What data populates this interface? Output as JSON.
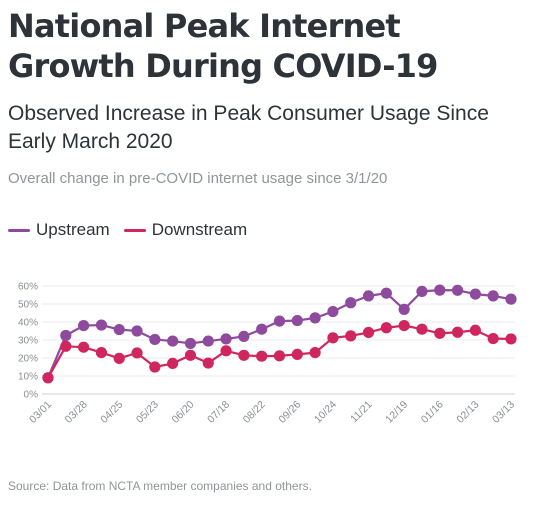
{
  "header": {
    "title": "National Peak Internet Growth During COVID-19",
    "subtitle": "Observed Increase in Peak Consumer Usage Since Early March 2020",
    "note": "Overall change in pre-COVID internet usage since 3/1/20"
  },
  "source": "Source: Data from NCTA member companies and others.",
  "chart_data": {
    "type": "line",
    "title": "National Peak Internet Growth During COVID-19",
    "subtitle": "Observed Increase in Peak Consumer Usage Since Early March 2020",
    "xlabel": "",
    "ylabel": "",
    "ylim": [
      0,
      60
    ],
    "yticks": [
      "0%",
      "10%",
      "20%",
      "30%",
      "40%",
      "50%",
      "60%"
    ],
    "x_tick_labels": [
      "03/01",
      "03/28",
      "04/25",
      "05/23",
      "06/20",
      "07/18",
      "08/22",
      "09/26",
      "10/24",
      "11/21",
      "12/19",
      "01/16",
      "02/13",
      "03/13"
    ],
    "grid": true,
    "legend_position": "top-left",
    "series": [
      {
        "name": "Upstream",
        "color": "#8e4a9c",
        "values": [
          9,
          32.5,
          38,
          38.3,
          35.8,
          35,
          30.3,
          29.4,
          28.1,
          29.4,
          30.6,
          32,
          36,
          40.5,
          40.8,
          42.3,
          45.8,
          50.7,
          54.5,
          56,
          47,
          57,
          57.7,
          57.6,
          55.5,
          54.5,
          52.7
        ]
      },
      {
        "name": "Downstream",
        "color": "#d0265e",
        "values": [
          9,
          26.5,
          26,
          23,
          19.8,
          22.8,
          15,
          17,
          21.5,
          17.2,
          24,
          21.5,
          21,
          21.2,
          22,
          23,
          31.2,
          32.3,
          34.2,
          36.8,
          38,
          36,
          33.7,
          34.3,
          35.4,
          30.8,
          30.6
        ]
      }
    ]
  }
}
